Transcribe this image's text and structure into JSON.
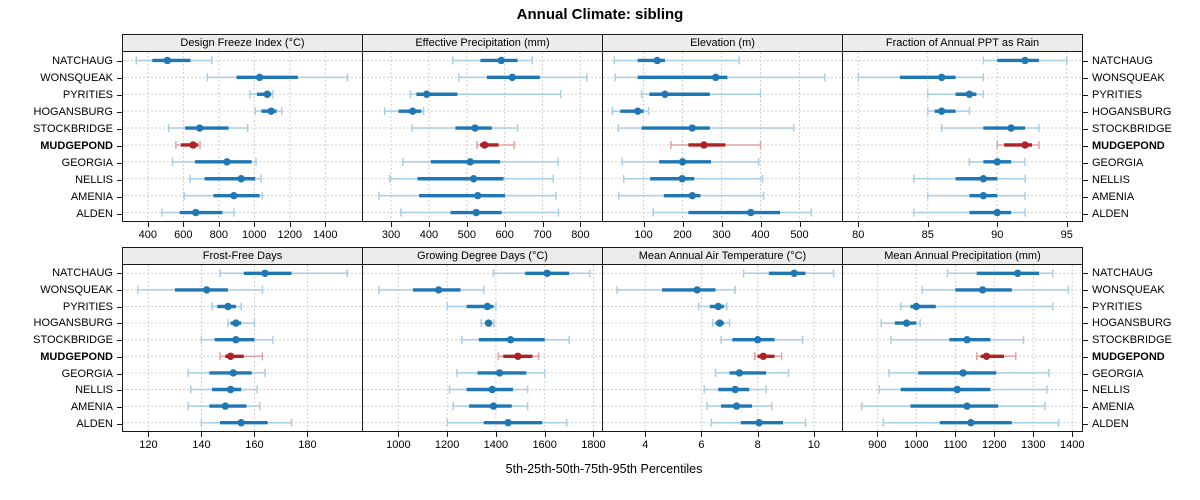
{
  "title": "Annual Climate: sibling",
  "footer_caption": "5th-25th-50th-75th-95th Percentiles",
  "stations": [
    "NATCHAUG",
    "WONSQUEAK",
    "PYRITIES",
    "HOGANSBURG",
    "STOCKBRIDGE",
    "MUDGEPOND",
    "GEORGIA",
    "NELLIS",
    "AMENIA",
    "ALDEN"
  ],
  "highlight_station": "MUDGEPOND",
  "percentile_labels": [
    "5th",
    "25th",
    "50th",
    "75th",
    "95th"
  ],
  "colors": {
    "series_blue": "#1f77b4",
    "series_blue_light": "#a8cee4",
    "highlight_red": "#b02126",
    "highlight_red_light": "#e2a2a4",
    "gridline": "#cfcfcf",
    "strip_bg": "#ececec",
    "panel_border": "#1a1a1a",
    "text": "#000000"
  },
  "chart_data": [
    {
      "type": "scatter",
      "subtype": "percentile-interval-dotplot",
      "title": "Design Freeze Index (°C)",
      "row": 0,
      "col": 0,
      "xlim": [
        260,
        1607
      ],
      "ticks": [
        400,
        600,
        800,
        1000,
        1200,
        1400
      ],
      "series": [
        {
          "name": "NATCHAUG",
          "p": [
            335,
            425,
            510,
            640,
            760
          ]
        },
        {
          "name": "WONSQUEAK",
          "p": [
            735,
            900,
            1030,
            1245,
            1525
          ]
        },
        {
          "name": "PYRITIES",
          "p": [
            975,
            1015,
            1073,
            1095,
            1105
          ]
        },
        {
          "name": "HOGANSBURG",
          "p": [
            1005,
            1040,
            1095,
            1125,
            1155
          ]
        },
        {
          "name": "STOCKBRIDGE",
          "p": [
            517,
            610,
            692,
            855,
            963
          ]
        },
        {
          "name": "MUDGEPOND",
          "p": [
            558,
            586,
            655,
            684,
            694
          ]
        },
        {
          "name": "GEORGIA",
          "p": [
            539,
            666,
            846,
            985,
            1010
          ]
        },
        {
          "name": "NELLIS",
          "p": [
            638,
            720,
            926,
            1005,
            1038
          ]
        },
        {
          "name": "AMENIA",
          "p": [
            605,
            770,
            885,
            1030,
            1045
          ]
        },
        {
          "name": "ALDEN",
          "p": [
            480,
            580,
            670,
            820,
            885
          ]
        }
      ]
    },
    {
      "type": "scatter",
      "subtype": "percentile-interval-dotplot",
      "title": "Effective Precipitation (mm)",
      "row": 0,
      "col": 1,
      "xlim": [
        226,
        857
      ],
      "ticks": [
        300,
        400,
        500,
        600,
        700,
        800
      ],
      "series": [
        {
          "name": "NATCHAUG",
          "p": [
            463,
            536,
            591,
            634,
            673
          ]
        },
        {
          "name": "WONSQUEAK",
          "p": [
            479,
            553,
            620,
            693,
            817
          ]
        },
        {
          "name": "PYRITIES",
          "p": [
            351,
            367,
            394,
            475,
            748
          ]
        },
        {
          "name": "HOGANSBURG",
          "p": [
            283,
            320,
            357,
            380,
            386
          ]
        },
        {
          "name": "STOCKBRIDGE",
          "p": [
            355,
            470,
            522,
            566,
            634
          ]
        },
        {
          "name": "MUDGEPOND",
          "p": [
            527,
            535,
            547,
            584,
            625
          ]
        },
        {
          "name": "GEORGIA",
          "p": [
            331,
            405,
            509,
            588,
            741
          ]
        },
        {
          "name": "NELLIS",
          "p": [
            297,
            370,
            518,
            597,
            728
          ]
        },
        {
          "name": "AMENIA",
          "p": [
            268,
            374,
            529,
            601,
            735
          ]
        },
        {
          "name": "ALDEN",
          "p": [
            326,
            457,
            525,
            592,
            742
          ]
        }
      ]
    },
    {
      "type": "scatter",
      "subtype": "percentile-interval-dotplot",
      "title": "Elevation (m)",
      "row": 0,
      "col": 2,
      "xlim": [
        -4,
        609
      ],
      "ticks": [
        100,
        200,
        300,
        400,
        500
      ],
      "series": [
        {
          "name": "NATCHAUG",
          "p": [
            25,
            85,
            135,
            155,
            345
          ]
        },
        {
          "name": "WONSQUEAK",
          "p": [
            27,
            85,
            285,
            315,
            565
          ]
        },
        {
          "name": "PYRITIES",
          "p": [
            95,
            115,
            155,
            270,
            400
          ]
        },
        {
          "name": "HOGANSBURG",
          "p": [
            20,
            40,
            85,
            100,
            113
          ]
        },
        {
          "name": "STOCKBRIDGE",
          "p": [
            35,
            95,
            225,
            270,
            485
          ]
        },
        {
          "name": "MUDGEPOND",
          "p": [
            170,
            215,
            255,
            310,
            400
          ]
        },
        {
          "name": "GEORGIA",
          "p": [
            45,
            140,
            200,
            273,
            395
          ]
        },
        {
          "name": "NELLIS",
          "p": [
            49,
            117,
            199,
            230,
            405
          ]
        },
        {
          "name": "AMENIA",
          "p": [
            36,
            152,
            225,
            246,
            408
          ]
        },
        {
          "name": "ALDEN",
          "p": [
            125,
            215,
            375,
            450,
            530
          ]
        }
      ]
    },
    {
      "type": "scatter",
      "subtype": "percentile-interval-dotplot",
      "title": "Fraction of Annual PPT as Rain",
      "row": 0,
      "col": 3,
      "xlim": [
        78.9,
        96.1
      ],
      "ticks": [
        80,
        85,
        90,
        95
      ],
      "series": [
        {
          "name": "NATCHAUG",
          "p": [
            89,
            90,
            92,
            93,
            95
          ]
        },
        {
          "name": "WONSQUEAK",
          "p": [
            80,
            83,
            86,
            87,
            89
          ]
        },
        {
          "name": "PYRITIES",
          "p": [
            85,
            87,
            88,
            88.5,
            89
          ]
        },
        {
          "name": "HOGANSBURG",
          "p": [
            85,
            85.5,
            86,
            87,
            88
          ]
        },
        {
          "name": "STOCKBRIDGE",
          "p": [
            86,
            89,
            91,
            92,
            93
          ]
        },
        {
          "name": "MUDGEPOND",
          "p": [
            90,
            90.5,
            92,
            92.5,
            93
          ]
        },
        {
          "name": "GEORGIA",
          "p": [
            88,
            89,
            90,
            91,
            92
          ]
        },
        {
          "name": "NELLIS",
          "p": [
            84,
            87,
            89,
            90,
            92
          ]
        },
        {
          "name": "AMENIA",
          "p": [
            85,
            88,
            89,
            90,
            92
          ]
        },
        {
          "name": "ALDEN",
          "p": [
            84,
            88,
            90,
            91,
            92
          ]
        }
      ]
    },
    {
      "type": "scatter",
      "subtype": "percentile-interval-dotplot",
      "title": "Frost-Free Days",
      "row": 1,
      "col": 0,
      "xlim": [
        110.4,
        200.6
      ],
      "ticks": [
        120,
        140,
        160,
        180
      ],
      "series": [
        {
          "name": "NATCHAUG",
          "p": [
            147,
            156,
            164,
            174,
            195
          ]
        },
        {
          "name": "WONSQUEAK",
          "p": [
            116,
            130,
            142,
            150,
            163
          ]
        },
        {
          "name": "PYRITIES",
          "p": [
            144,
            146,
            150,
            153,
            155
          ]
        },
        {
          "name": "HOGANSBURG",
          "p": [
            150,
            151,
            153,
            155,
            160
          ]
        },
        {
          "name": "STOCKBRIDGE",
          "p": [
            140,
            145,
            153,
            160,
            167
          ]
        },
        {
          "name": "MUDGEPOND",
          "p": [
            147,
            149,
            151,
            156,
            163
          ]
        },
        {
          "name": "GEORGIA",
          "p": [
            135,
            143,
            152,
            159,
            164
          ]
        },
        {
          "name": "NELLIS",
          "p": [
            136,
            144,
            151,
            155,
            161
          ]
        },
        {
          "name": "AMENIA",
          "p": [
            135,
            143,
            149,
            157,
            162
          ]
        },
        {
          "name": "ALDEN",
          "p": [
            140,
            147,
            155,
            165,
            174
          ]
        }
      ]
    },
    {
      "type": "scatter",
      "subtype": "percentile-interval-dotplot",
      "title": "Growing Degree Days (°C)",
      "row": 1,
      "col": 1,
      "xlim": [
        855,
        1835
      ],
      "ticks": [
        1000,
        1200,
        1400,
        1600,
        1800
      ],
      "series": [
        {
          "name": "NATCHAUG",
          "p": [
            1390,
            1520,
            1610,
            1700,
            1785
          ]
        },
        {
          "name": "WONSQUEAK",
          "p": [
            920,
            1060,
            1165,
            1255,
            1350
          ]
        },
        {
          "name": "PYRITIES",
          "p": [
            1200,
            1280,
            1365,
            1390,
            1400
          ]
        },
        {
          "name": "HOGANSBURG",
          "p": [
            1340,
            1355,
            1370,
            1382,
            1392
          ]
        },
        {
          "name": "STOCKBRIDGE",
          "p": [
            1260,
            1330,
            1460,
            1600,
            1700
          ]
        },
        {
          "name": "MUDGEPOND",
          "p": [
            1410,
            1430,
            1490,
            1550,
            1575
          ]
        },
        {
          "name": "GEORGIA",
          "p": [
            1240,
            1325,
            1415,
            1525,
            1600
          ]
        },
        {
          "name": "NELLIS",
          "p": [
            1210,
            1280,
            1385,
            1470,
            1530
          ]
        },
        {
          "name": "AMENIA",
          "p": [
            1225,
            1290,
            1390,
            1465,
            1530
          ]
        },
        {
          "name": "ALDEN",
          "p": [
            1200,
            1350,
            1450,
            1590,
            1690
          ]
        }
      ]
    },
    {
      "type": "scatter",
      "subtype": "percentile-interval-dotplot",
      "title": "Mean Annual Air Temperature (°C)",
      "row": 1,
      "col": 2,
      "xlim": [
        2.5,
        11.0
      ],
      "ticks": [
        4,
        6,
        8,
        10
      ],
      "series": [
        {
          "name": "NATCHAUG",
          "p": [
            7.5,
            8.4,
            9.3,
            9.7,
            10.7
          ]
        },
        {
          "name": "WONSQUEAK",
          "p": [
            3.0,
            4.6,
            5.85,
            6.5,
            7.2
          ]
        },
        {
          "name": "PYRITIES",
          "p": [
            5.9,
            6.3,
            6.6,
            6.8,
            6.9
          ]
        },
        {
          "name": "HOGANSBURG",
          "p": [
            6.4,
            6.5,
            6.65,
            6.8,
            7.0
          ]
        },
        {
          "name": "STOCKBRIDGE",
          "p": [
            6.7,
            7.1,
            8.0,
            8.6,
            9.6
          ]
        },
        {
          "name": "MUDGEPOND",
          "p": [
            7.9,
            8.0,
            8.2,
            8.6,
            8.85
          ]
        },
        {
          "name": "GEORGIA",
          "p": [
            6.5,
            7.0,
            7.35,
            8.3,
            9.1
          ]
        },
        {
          "name": "NELLIS",
          "p": [
            6.1,
            6.6,
            7.2,
            7.7,
            8.3
          ]
        },
        {
          "name": "AMENIA",
          "p": [
            6.2,
            6.7,
            7.25,
            7.8,
            8.5
          ]
        },
        {
          "name": "ALDEN",
          "p": [
            6.35,
            7.4,
            8.05,
            8.9,
            9.7
          ]
        }
      ]
    },
    {
      "type": "scatter",
      "subtype": "percentile-interval-dotplot",
      "title": "Mean Annual Precipitation (mm)",
      "row": 1,
      "col": 3,
      "xlim": [
        812,
        1425
      ],
      "ticks": [
        900,
        1000,
        1100,
        1200,
        1300,
        1400
      ],
      "series": [
        {
          "name": "NATCHAUG",
          "p": [
            1080,
            1155,
            1260,
            1315,
            1350
          ]
        },
        {
          "name": "WONSQUEAK",
          "p": [
            1015,
            1100,
            1170,
            1245,
            1390
          ]
        },
        {
          "name": "PYRITIES",
          "p": [
            960,
            985,
            1000,
            1050,
            1350
          ]
        },
        {
          "name": "HOGANSBURG",
          "p": [
            910,
            945,
            975,
            1000,
            1010
          ]
        },
        {
          "name": "STOCKBRIDGE",
          "p": [
            935,
            1085,
            1130,
            1190,
            1275
          ]
        },
        {
          "name": "MUDGEPOND",
          "p": [
            1155,
            1165,
            1180,
            1225,
            1255
          ]
        },
        {
          "name": "GEORGIA",
          "p": [
            930,
            1005,
            1120,
            1205,
            1340
          ]
        },
        {
          "name": "NELLIS",
          "p": [
            905,
            960,
            1105,
            1190,
            1335
          ]
        },
        {
          "name": "AMENIA",
          "p": [
            860,
            985,
            1130,
            1210,
            1330
          ]
        },
        {
          "name": "ALDEN",
          "p": [
            915,
            1060,
            1140,
            1245,
            1365
          ]
        }
      ]
    }
  ]
}
